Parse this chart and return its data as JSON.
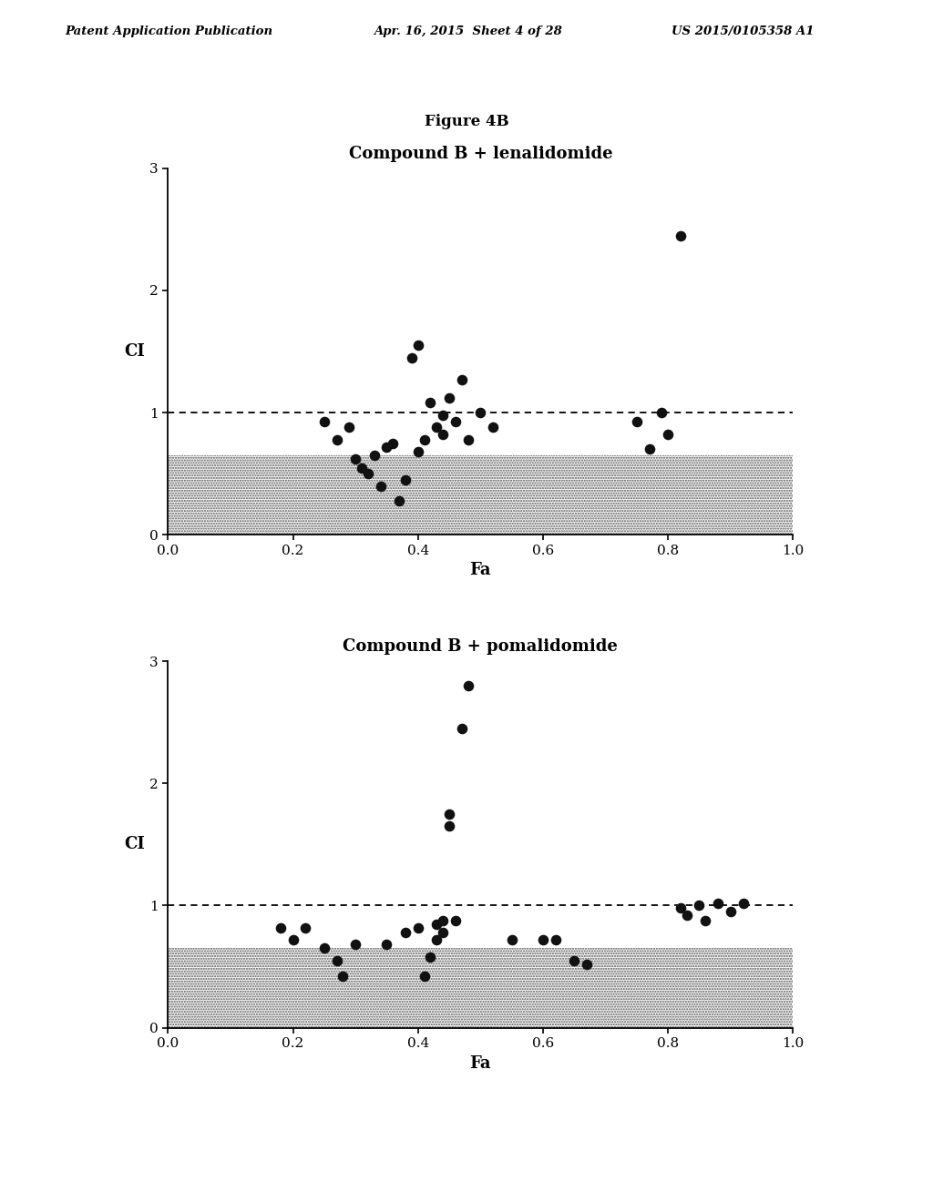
{
  "figure_label": "Figure 4B",
  "header_left": "Patent Application Publication",
  "header_center": "Apr. 16, 2015  Sheet 4 of 28",
  "header_right": "US 2015/0105358 A1",
  "plot1": {
    "title": "Compound B + lenalidomide",
    "xlabel": "Fa",
    "ylabel": "CI",
    "xlim": [
      0.0,
      1.0
    ],
    "ylim": [
      0.0,
      3.0
    ],
    "xticks": [
      0.0,
      0.2,
      0.4,
      0.6,
      0.8,
      1.0
    ],
    "yticks": [
      0,
      1,
      2,
      3
    ],
    "dashed_line_y": 1.0,
    "shaded_region": [
      0.0,
      0.65
    ],
    "points_x": [
      0.25,
      0.27,
      0.29,
      0.3,
      0.31,
      0.32,
      0.33,
      0.34,
      0.35,
      0.36,
      0.37,
      0.38,
      0.39,
      0.4,
      0.4,
      0.41,
      0.42,
      0.43,
      0.44,
      0.44,
      0.45,
      0.46,
      0.47,
      0.48,
      0.5,
      0.52,
      0.75,
      0.77,
      0.79,
      0.8,
      0.82
    ],
    "points_y": [
      0.93,
      0.78,
      0.88,
      0.62,
      0.55,
      0.5,
      0.65,
      0.4,
      0.72,
      0.75,
      0.28,
      0.45,
      1.45,
      1.55,
      0.68,
      0.78,
      1.08,
      0.88,
      0.98,
      0.82,
      1.12,
      0.93,
      1.27,
      0.78,
      1.0,
      0.88,
      0.93,
      0.7,
      1.0,
      0.82,
      2.45
    ]
  },
  "plot2": {
    "title": "Compound B + pomalidomide",
    "xlabel": "Fa",
    "ylabel": "CI",
    "xlim": [
      0.0,
      1.0
    ],
    "ylim": [
      0.0,
      3.0
    ],
    "xticks": [
      0.0,
      0.2,
      0.4,
      0.6,
      0.8,
      1.0
    ],
    "yticks": [
      0,
      1,
      2,
      3
    ],
    "dashed_line_y": 1.0,
    "shaded_region": [
      0.0,
      0.65
    ],
    "points_x": [
      0.18,
      0.2,
      0.22,
      0.25,
      0.27,
      0.28,
      0.3,
      0.35,
      0.38,
      0.4,
      0.41,
      0.42,
      0.43,
      0.43,
      0.44,
      0.44,
      0.45,
      0.45,
      0.46,
      0.47,
      0.48,
      0.55,
      0.6,
      0.62,
      0.65,
      0.67,
      0.82,
      0.83,
      0.85,
      0.86,
      0.88,
      0.9,
      0.92
    ],
    "points_y": [
      0.82,
      0.72,
      0.82,
      0.65,
      0.55,
      0.42,
      0.68,
      0.68,
      0.78,
      0.82,
      0.42,
      0.58,
      0.72,
      0.85,
      0.78,
      0.88,
      1.65,
      1.75,
      0.88,
      2.45,
      2.8,
      0.72,
      0.72,
      0.72,
      0.55,
      0.52,
      0.98,
      0.92,
      1.0,
      0.88,
      1.02,
      0.95,
      1.02
    ]
  },
  "marker_size": 70,
  "marker_color": "#111111",
  "shaded_color": "#aaaaaa",
  "background_color": "#ffffff"
}
